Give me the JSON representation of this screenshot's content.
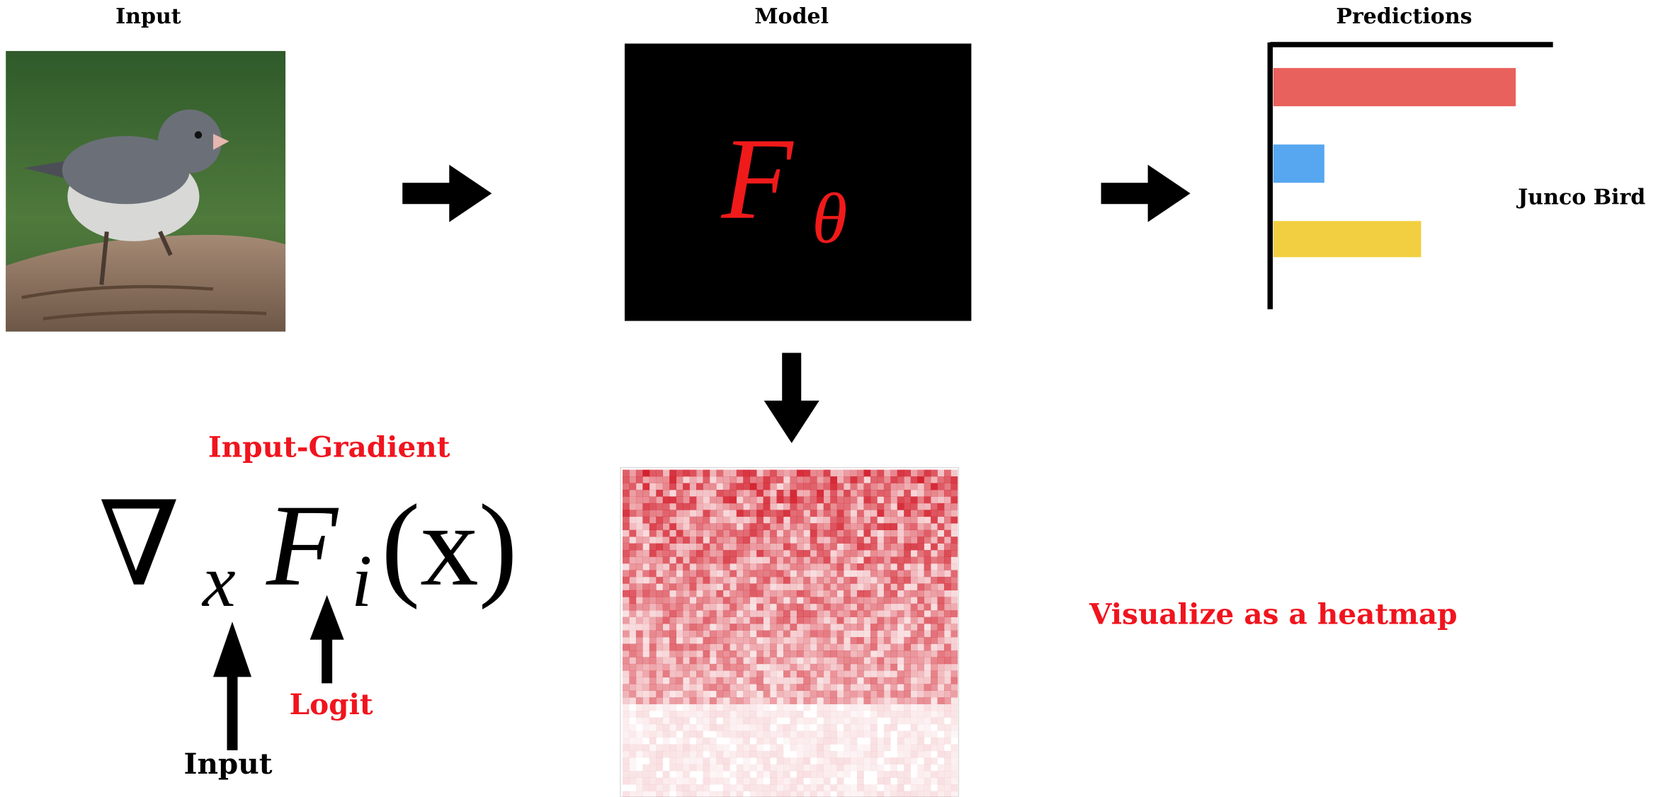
{
  "top": {
    "input_label": "Input",
    "model_label": "Model",
    "predictions_label": "Predictions",
    "prediction_class": "Junco Bird"
  },
  "model": {
    "symbol": "F",
    "subscript": "θ"
  },
  "formula": {
    "title": "Input-Gradient",
    "nabla": "∇",
    "sub_x": "x",
    "function": "F",
    "sub_i": "i",
    "argument": "(x)",
    "logit_label": "Logit",
    "input_label": "Input"
  },
  "heatmap": {
    "caption": "Visualize as a heatmap"
  }
}
